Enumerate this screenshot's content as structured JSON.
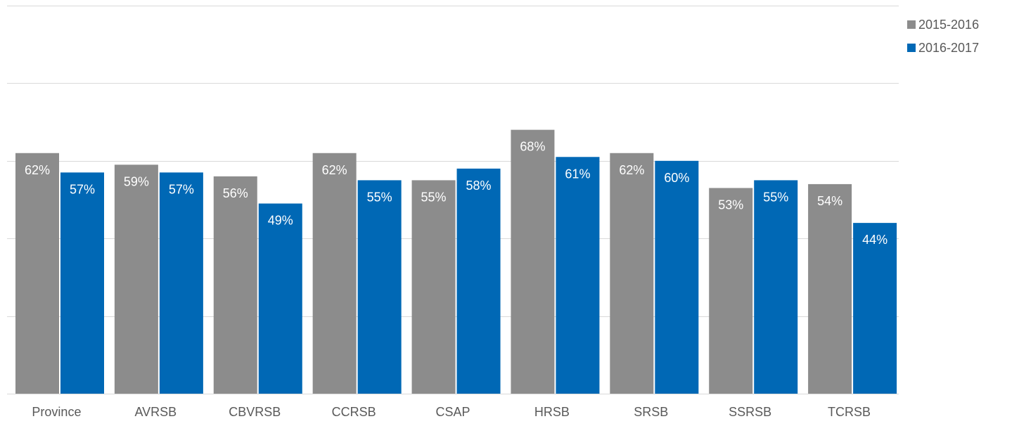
{
  "chart_data": {
    "type": "bar",
    "title": "",
    "xlabel": "",
    "ylabel": "",
    "ylim": [
      0,
      100
    ],
    "grid": true,
    "legend_position": "top-right",
    "value_suffix": "%",
    "categories": [
      "Province",
      "AVRSB",
      "CBVRSB",
      "CCRSB",
      "CSAP",
      "HRSB",
      "SRSB",
      "SSRSB",
      "TCRSB"
    ],
    "series": [
      {
        "name": "2015-2016",
        "color": "#8c8c8c",
        "values": [
          62,
          59,
          56,
          62,
          55,
          68,
          62,
          53,
          54
        ]
      },
      {
        "name": "2016-2017",
        "color": "#0068b5",
        "values": [
          57,
          57,
          49,
          55,
          58,
          61,
          60,
          55,
          44
        ]
      }
    ]
  }
}
